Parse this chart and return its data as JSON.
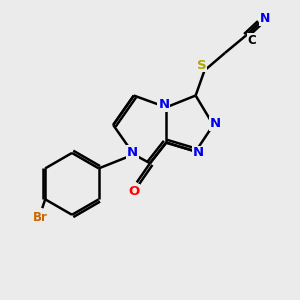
{
  "background_color": "#ebebeb",
  "bond_color": "#000000",
  "atom_colors": {
    "N": "#0000ee",
    "O": "#ff0000",
    "S": "#aaaa00",
    "Br": "#cc6600",
    "C": "#000000"
  },
  "figsize": [
    3.0,
    3.0
  ],
  "dpi": 100
}
